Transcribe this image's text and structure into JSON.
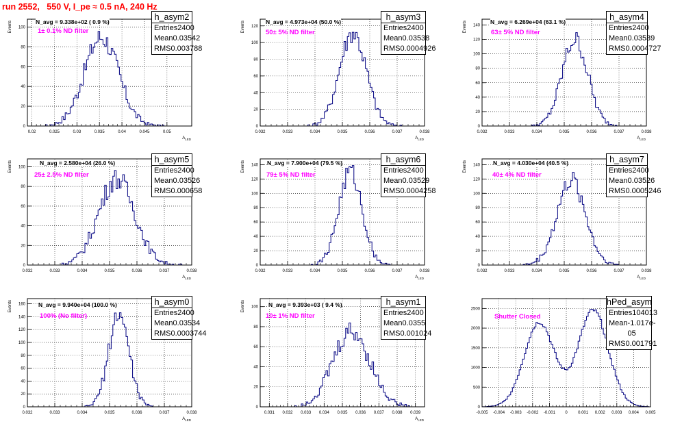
{
  "header": {
    "title": "run 2552,   550 V, I_pe ≈ 0.5 nA, 240 Hz"
  },
  "colors": {
    "title": "#ff0000",
    "filter_text": "#ff00ff",
    "histogram_line": "#000080"
  },
  "stat_labels": {
    "entries": "Entries",
    "mean": "Mean",
    "rms": "RMS"
  },
  "chart_data": [
    {
      "type": "histogram",
      "name": "h_asym2",
      "navg": "N_avg = 9.338e+02 ( 0.9 %)",
      "filter": "1± 0.1% ND filter",
      "entries": "2400",
      "mean": "0.03542",
      "rms": "0.003788",
      "xlim": [
        0.019,
        0.0555
      ],
      "ylim": [
        0,
        108
      ],
      "x_ticks": [
        0.02,
        0.025,
        0.03,
        0.035,
        0.04,
        0.045,
        0.05
      ],
      "x_tick_labels": [
        "0.02",
        "0.025",
        "0.03",
        "0.035",
        "0.04",
        "0.045",
        "0.05"
      ],
      "y_ticks": [
        0,
        20,
        40,
        60,
        80,
        100
      ],
      "ylabel": "Events",
      "xlabel": "A_{LED}",
      "peaks": [
        {
          "mu": 0.03542,
          "sigma": 0.0038,
          "amp": 90
        }
      ]
    },
    {
      "type": "histogram",
      "name": "h_asym3",
      "navg": "N_avg = 4.973e+04 (50.0 %)",
      "filter": "50± 5% ND filter",
      "entries": "2400",
      "mean": "0.03538",
      "rms": "0.0004926",
      "xlim": [
        0.032,
        0.038
      ],
      "ylim": [
        0,
        128
      ],
      "x_ticks": [
        0.032,
        0.033,
        0.034,
        0.035,
        0.036,
        0.037,
        0.038
      ],
      "x_tick_labels": [
        "0.032",
        "0.033",
        "0.034",
        "0.035",
        "0.036",
        "0.037",
        "0.038"
      ],
      "y_ticks": [
        0,
        20,
        40,
        60,
        80,
        100,
        120
      ],
      "ylabel": "Events",
      "xlabel": "A_{LED}",
      "peaks": [
        {
          "mu": 0.03538,
          "sigma": 0.00049,
          "amp": 112
        }
      ]
    },
    {
      "type": "histogram",
      "name": "h_asym4",
      "navg": "N_avg = 6.269e+04 (63.1 %)",
      "filter": "63± 5% ND filter",
      "entries": "2400",
      "mean": "0.03539",
      "rms": "0.0004727",
      "xlim": [
        0.032,
        0.038
      ],
      "ylim": [
        0,
        148
      ],
      "x_ticks": [
        0.032,
        0.033,
        0.034,
        0.035,
        0.036,
        0.037,
        0.038
      ],
      "x_tick_labels": [
        "0.032",
        "0.033",
        "0.034",
        "0.035",
        "0.036",
        "0.037",
        "0.038"
      ],
      "y_ticks": [
        0,
        20,
        40,
        60,
        80,
        100,
        120,
        140
      ],
      "ylabel": "Events",
      "xlabel": "A_{LED}",
      "peaks": [
        {
          "mu": 0.03539,
          "sigma": 0.00047,
          "amp": 120
        }
      ]
    },
    {
      "type": "histogram",
      "name": "h_asym5",
      "navg": "N_avg = 2.580e+04 (26.0 %)",
      "filter": "25± 2.5% ND filter",
      "entries": "2400",
      "mean": "0.03526",
      "rms": "0.000658",
      "xlim": [
        0.032,
        0.038
      ],
      "ylim": [
        0,
        108
      ],
      "x_ticks": [
        0.032,
        0.033,
        0.034,
        0.035,
        0.036,
        0.037,
        0.038
      ],
      "x_tick_labels": [
        "0.032",
        "0.033",
        "0.034",
        "0.035",
        "0.036",
        "0.037",
        "0.038"
      ],
      "y_ticks": [
        0,
        20,
        40,
        60,
        80,
        100
      ],
      "ylabel": "Events",
      "xlabel": "A_{LED}",
      "peaks": [
        {
          "mu": 0.03526,
          "sigma": 0.00066,
          "amp": 88
        }
      ]
    },
    {
      "type": "histogram",
      "name": "h_asym6",
      "navg": "N_avg = 7.900e+04 (79.5 %)",
      "filter": "79± 5% ND filter",
      "entries": "2400",
      "mean": "0.03529",
      "rms": "0.0004258",
      "xlim": [
        0.032,
        0.038
      ],
      "ylim": [
        0,
        148
      ],
      "x_ticks": [
        0.032,
        0.033,
        0.034,
        0.035,
        0.036,
        0.037,
        0.038
      ],
      "x_tick_labels": [
        "0.032",
        "0.033",
        "0.034",
        "0.035",
        "0.036",
        "0.037",
        "0.038"
      ],
      "y_ticks": [
        0,
        20,
        40,
        60,
        80,
        100,
        120,
        140
      ],
      "ylabel": "Events",
      "xlabel": "A_{LED}",
      "peaks": [
        {
          "mu": 0.03529,
          "sigma": 0.00043,
          "amp": 130
        }
      ]
    },
    {
      "type": "histogram",
      "name": "h_asym7",
      "navg": "N_avg = 4.030e+04 (40.5 %)",
      "filter": "40± 4% ND filter",
      "entries": "2400",
      "mean": "0.03526",
      "rms": "0.0005246",
      "xlim": [
        0.032,
        0.038
      ],
      "ylim": [
        0,
        148
      ],
      "x_ticks": [
        0.032,
        0.033,
        0.034,
        0.035,
        0.036,
        0.037,
        0.038
      ],
      "x_tick_labels": [
        "0.032",
        "0.033",
        "0.034",
        "0.035",
        "0.036",
        "0.037",
        "0.038"
      ],
      "y_ticks": [
        0,
        20,
        40,
        60,
        80,
        100,
        120,
        140
      ],
      "ylabel": "Events",
      "xlabel": "A_{LED}",
      "peaks": [
        {
          "mu": 0.03526,
          "sigma": 0.00052,
          "amp": 118
        }
      ]
    },
    {
      "type": "histogram",
      "name": "h_asym0",
      "navg": "N_avg = 9.940e+04 (100.0 %)",
      "filter": "100% (No filter)",
      "entries": "2400",
      "mean": "0.03534",
      "rms": "0.0003744",
      "xlim": [
        0.032,
        0.038
      ],
      "ylim": [
        0,
        168
      ],
      "x_ticks": [
        0.032,
        0.033,
        0.034,
        0.035,
        0.036,
        0.037,
        0.038
      ],
      "x_tick_labels": [
        "0.032",
        "0.033",
        "0.034",
        "0.035",
        "0.036",
        "0.037",
        "0.038"
      ],
      "y_ticks": [
        0,
        20,
        40,
        60,
        80,
        100,
        120,
        140,
        160
      ],
      "ylabel": "Events",
      "xlabel": "A_{LED}",
      "peaks": [
        {
          "mu": 0.03534,
          "sigma": 0.00037,
          "amp": 145
        }
      ]
    },
    {
      "type": "histogram",
      "name": "h_asym1",
      "navg": "N_avg = 9.393e+03 ( 9.4 %)",
      "filter": "10± 1% ND filter",
      "entries": "2400",
      "mean": "0.0355",
      "rms": "0.001024",
      "xlim": [
        0.0305,
        0.0395
      ],
      "ylim": [
        0,
        108
      ],
      "x_ticks": [
        0.031,
        0.032,
        0.033,
        0.034,
        0.035,
        0.036,
        0.037,
        0.038,
        0.039
      ],
      "x_tick_labels": [
        "0.031",
        "0.032",
        "0.033",
        "0.034",
        "0.035",
        "0.036",
        "0.037",
        "0.038",
        "0.039"
      ],
      "y_ticks": [
        0,
        20,
        40,
        60,
        80,
        100
      ],
      "ylabel": "Events",
      "xlabel": "A_{LED}",
      "peaks": [
        {
          "mu": 0.0355,
          "sigma": 0.00102,
          "amp": 75
        }
      ]
    },
    {
      "type": "histogram",
      "name": "hPed_asym",
      "navg": "",
      "filter": "Shutter Closed",
      "entries": "104013",
      "mean": "-1.017e-05",
      "rms": "0.001791",
      "xlim": [
        -0.005,
        0.005
      ],
      "ylim": [
        0,
        2750
      ],
      "x_ticks": [
        -0.005,
        -0.004,
        -0.003,
        -0.002,
        -0.001,
        0,
        0.001,
        0.002,
        0.003,
        0.004,
        0.005
      ],
      "x_tick_labels": [
        "-0.005",
        "-0.004",
        "-0.003",
        "-0.002",
        "-0.001",
        "0",
        "0.001",
        "0.002",
        "0.003",
        "0.004",
        "0.005"
      ],
      "y_ticks": [
        0,
        500,
        1000,
        1500,
        2000,
        2500
      ],
      "ylabel": "",
      "xlabel": "",
      "peaks": [
        {
          "mu": -0.0016,
          "sigma": 0.0009,
          "amp": 2150
        },
        {
          "mu": 0.0016,
          "sigma": 0.0009,
          "amp": 2450
        }
      ]
    }
  ]
}
